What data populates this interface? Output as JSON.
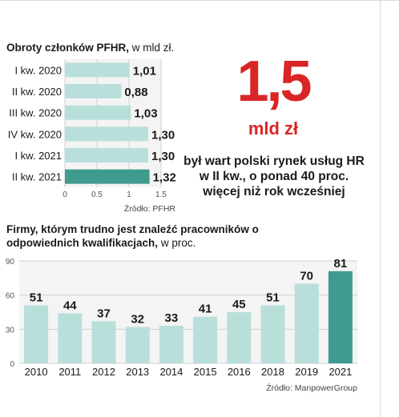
{
  "chart_data": [
    {
      "type": "bar",
      "orientation": "horizontal",
      "title": "Obroty członków PFHR,",
      "subtitle": "w mld zł.",
      "categories": [
        "I kw. 2020",
        "II kw. 2020",
        "III kw. 2020",
        "IV kw. 2020",
        "I kw. 2021",
        "II kw. 2021"
      ],
      "values": [
        1.01,
        0.88,
        1.03,
        1.3,
        1.3,
        1.32
      ],
      "value_labels": [
        "1,01",
        "0,88",
        "1,03",
        "1,30",
        "1,30",
        "1,32"
      ],
      "highlight_index": 5,
      "xlim": [
        0,
        1.5
      ],
      "xticks": [
        0,
        0.5,
        1,
        1.5
      ],
      "xtick_labels": [
        "0",
        "0.5",
        "1",
        "1.5"
      ],
      "grid": true,
      "source": "Źródło: PFHR",
      "colors": {
        "bar": "#b9dfdb",
        "highlight": "#3f9b8e"
      }
    },
    {
      "type": "bar",
      "title": "Firmy, którym trudno jest znaleźć pracowników o odpowiednich kwalifikacjach,",
      "subtitle": "w proc.",
      "categories": [
        "2010",
        "2011",
        "2012",
        "2013",
        "2014",
        "2015",
        "2016",
        "2018",
        "2019",
        "2021"
      ],
      "values": [
        51,
        44,
        37,
        32,
        33,
        41,
        45,
        51,
        70,
        81
      ],
      "highlight_index": 9,
      "ylim": [
        0,
        90
      ],
      "yticks": [
        0,
        30,
        60,
        90
      ],
      "ytick_labels": [
        "0",
        "30",
        "60",
        "90"
      ],
      "grid": true,
      "source": "Źródło: ManpowerGroup",
      "colors": {
        "bar": "#b9dfdb",
        "highlight": "#3f9b8e"
      }
    }
  ],
  "highlight": {
    "value": "1,5",
    "unit": "mld zł",
    "description": "był wart polski rynek usług HR w II kw., o ponad 40 proc. więcej niż rok wcześniej"
  }
}
